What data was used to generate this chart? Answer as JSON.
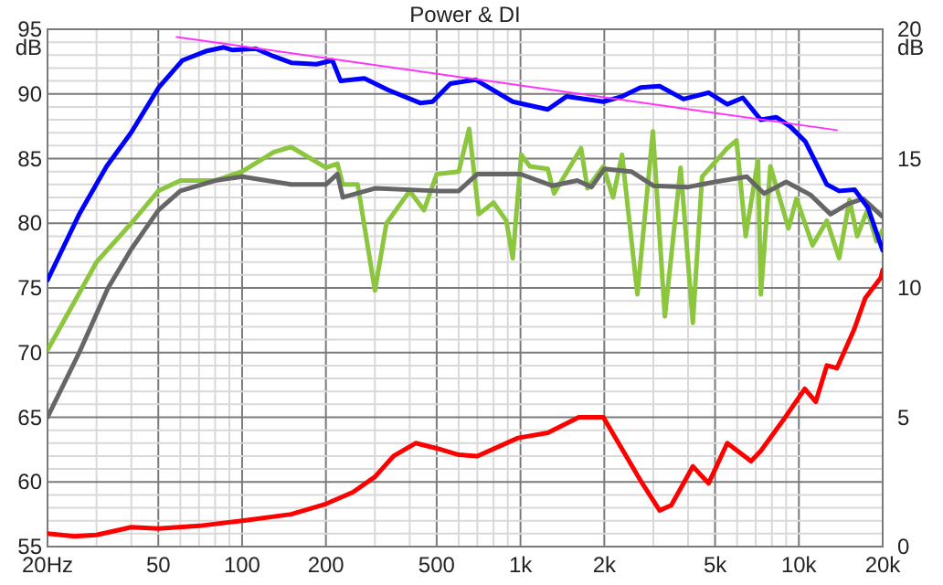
{
  "chart_data": {
    "type": "line",
    "title": "Power & DI",
    "ylabel": "dB",
    "y2label": "dB",
    "log": "x",
    "grid": true,
    "xlim": [
      20,
      20000
    ],
    "ylim": [
      55,
      95
    ],
    "y2lim": [
      0,
      20
    ],
    "xticks": [
      {
        "value": 20,
        "label": "20Hz"
      },
      {
        "value": 30,
        "label": null
      },
      {
        "value": 40,
        "label": null
      },
      50,
      {
        "value": 60,
        "label": null
      },
      {
        "value": 70,
        "label": null
      },
      {
        "value": 80,
        "label": null
      },
      {
        "value": 90,
        "label": null
      },
      100,
      200,
      {
        "value": 300,
        "label": null
      },
      {
        "value": 400,
        "label": null
      },
      500,
      {
        "value": 600,
        "label": null
      },
      {
        "value": 700,
        "label": null
      },
      {
        "value": 800,
        "label": null
      },
      {
        "value": 900,
        "label": null
      },
      {
        "value": 1000,
        "label": "1k"
      },
      {
        "value": 2000,
        "label": "2k"
      },
      {
        "value": 3000,
        "label": null
      },
      {
        "value": 4000,
        "label": null
      },
      {
        "value": 5000,
        "label": "5k"
      },
      {
        "value": 6000,
        "label": null
      },
      {
        "value": 7000,
        "label": null
      },
      {
        "value": 8000,
        "label": null
      },
      {
        "value": 9000,
        "label": null
      },
      {
        "value": 10000,
        "label": "10k"
      },
      {
        "value": 20000,
        "label": "20k"
      }
    ],
    "yticks": [
      55,
      {
        "value": 56,
        "label": null
      },
      {
        "value": 57,
        "label": null
      },
      {
        "value": 58,
        "label": null
      },
      {
        "value": 59,
        "label": null
      },
      60,
      {
        "value": 61,
        "label": null
      },
      {
        "value": 62,
        "label": null
      },
      {
        "value": 63,
        "label": null
      },
      {
        "value": 64,
        "label": null
      },
      65,
      {
        "value": 66,
        "label": null
      },
      {
        "value": 67,
        "label": null
      },
      {
        "value": 68,
        "label": null
      },
      {
        "value": 69,
        "label": null
      },
      70,
      {
        "value": 71,
        "label": null
      },
      {
        "value": 72,
        "label": null
      },
      {
        "value": 73,
        "label": null
      },
      {
        "value": 74,
        "label": null
      },
      75,
      {
        "value": 76,
        "label": null
      },
      {
        "value": 77,
        "label": null
      },
      {
        "value": 78,
        "label": null
      },
      {
        "value": 79,
        "label": null
      },
      80,
      {
        "value": 81,
        "label": null
      },
      {
        "value": 82,
        "label": null
      },
      {
        "value": 83,
        "label": null
      },
      {
        "value": 84,
        "label": null
      },
      85,
      {
        "value": 86,
        "label": null
      },
      {
        "value": 87,
        "label": null
      },
      {
        "value": 88,
        "label": null
      },
      {
        "value": 89,
        "label": null
      },
      90,
      {
        "value": 91,
        "label": null
      },
      {
        "value": 92,
        "label": null
      },
      {
        "value": 93,
        "label": null
      },
      {
        "value": 94,
        "label": null
      },
      95
    ],
    "y2ticks": [
      0,
      5,
      10,
      15,
      20
    ],
    "series": [
      {
        "color": "#8cc63f",
        "x": [
          20,
          30,
          40,
          50,
          60,
          80,
          100,
          130,
          150,
          200,
          220,
          230,
          260,
          300,
          330,
          400,
          450,
          500,
          600,
          654,
          708,
          800,
          889,
          938,
          1006,
          1080,
          1253,
          1320,
          1650,
          1740,
          1985,
          2150,
          2316,
          2630,
          2990,
          3300,
          3760,
          4160,
          4490,
          5530,
          5970,
          6440,
          7130,
          7300,
          7900,
          9180,
          9800,
          11200,
          12600,
          13950,
          15200,
          16200,
          17600,
          19000,
          20000
        ],
        "values": [
          70.2,
          77,
          80,
          82.5,
          83.3,
          83.3,
          84,
          85.5,
          85.9,
          84.3,
          84.6,
          83,
          83,
          74.8,
          80,
          82.5,
          81,
          83.8,
          84,
          87.3,
          80.7,
          81.6,
          80.2,
          77.3,
          85.3,
          84.4,
          84.2,
          82.3,
          85.8,
          82.7,
          84.4,
          82,
          85.3,
          74.5,
          87.1,
          72.8,
          84.3,
          72.3,
          83.6,
          85.8,
          86.4,
          79,
          84.9,
          74.5,
          84.4,
          79.6,
          81.9,
          78.3,
          80.2,
          77.3,
          81.8,
          79,
          81,
          78.6,
          79.5
        ]
      },
      {
        "color": "#666666",
        "x": [
          20,
          26,
          33,
          40,
          50,
          60,
          80,
          100,
          150,
          200,
          220,
          230,
          300,
          500,
          600,
          700,
          1000,
          1300,
          1600,
          1800,
          2000,
          2500,
          3000,
          4000,
          5000,
          6500,
          7500,
          9000,
          11000,
          13000,
          15000,
          17000,
          20000
        ],
        "values": [
          65,
          70,
          75,
          78,
          81,
          82.5,
          83.3,
          83.6,
          83,
          83,
          83.8,
          82,
          82.7,
          82.5,
          82.5,
          83.8,
          83.8,
          82.9,
          83.3,
          82.8,
          84.2,
          84,
          82.9,
          82.8,
          83.2,
          83.6,
          82.3,
          83.2,
          82.2,
          80.7,
          81.5,
          81.9,
          80.5
        ]
      },
      {
        "color": "#0000ff",
        "x": [
          20,
          26,
          32.6,
          39.9,
          50.2,
          61.1,
          74,
          86,
          92,
          112,
          130,
          151,
          185,
          211,
          226,
          275,
          335,
          436,
          483,
          560,
          689,
          938,
          1253,
          1462,
          1985,
          2316,
          2700,
          3160,
          3850,
          4740,
          5530,
          6290,
          7300,
          8300,
          9290,
          10560,
          12600,
          13950,
          15860,
          17700,
          20000
        ],
        "values": [
          75.6,
          80.7,
          84.4,
          87,
          90.5,
          92.6,
          93.3,
          93.6,
          93.4,
          93.5,
          92.9,
          92.4,
          92.3,
          92.6,
          91,
          91.2,
          90.3,
          89.3,
          89.4,
          90.8,
          91.1,
          89.4,
          88.8,
          89.8,
          89.4,
          89.8,
          90.5,
          90.6,
          89.6,
          90.1,
          89.2,
          89.7,
          88,
          88.2,
          87.5,
          86.3,
          83,
          82.5,
          82.6,
          81.2,
          77.9
        ]
      },
      {
        "color": "#ff33ff",
        "x": [
          58.2,
          13700
        ],
        "values": [
          94.4,
          87.2
        ]
      },
      {
        "axis": "y2",
        "color": "#ff0000",
        "x": [
          20,
          25,
          30,
          40,
          50,
          70,
          100,
          150,
          200,
          250,
          300,
          350,
          420,
          500,
          600,
          700,
          980,
          1253,
          1620,
          1985,
          2700,
          3160,
          3480,
          3850,
          4160,
          4740,
          5530,
          6730,
          7300,
          8800,
          10500,
          11500,
          12600,
          13700,
          15800,
          17300,
          19700,
          20000
        ],
        "values": [
          0.5,
          0.4,
          0.45,
          0.75,
          0.7,
          0.8,
          1,
          1.25,
          1.65,
          2.1,
          2.7,
          3.5,
          4,
          3.8,
          3.55,
          3.5,
          4.2,
          4.4,
          5,
          5,
          2.55,
          1.4,
          1.6,
          2.45,
          3.1,
          2.45,
          4,
          3.3,
          3.7,
          4.9,
          6.1,
          5.6,
          7,
          6.9,
          8.4,
          9.6,
          10.4,
          10.7
        ]
      }
    ]
  }
}
